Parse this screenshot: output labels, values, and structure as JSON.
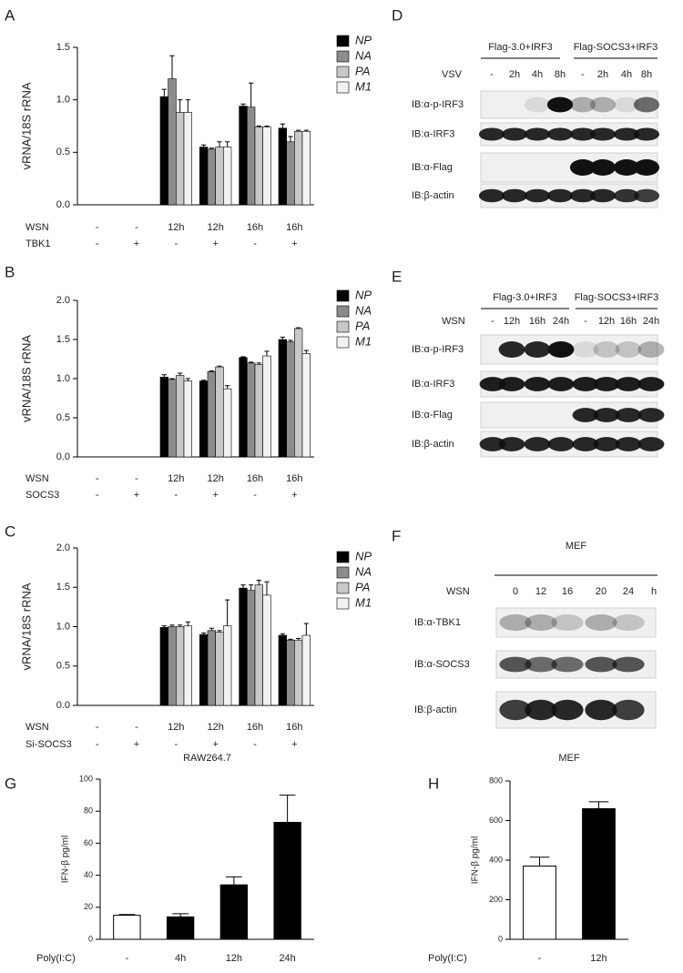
{
  "chart_data": [
    {
      "type": "grouped-bar",
      "panel": "A",
      "y_label": "vRNA/18S rRNA",
      "ylim": [
        0,
        1.5
      ],
      "yticks": [
        {
          "value": 0,
          "label": "0.0"
        },
        0.5,
        {
          "value": 1,
          "label": "1.0"
        },
        1.5
      ],
      "condition_rows": [
        {
          "name": "WSN",
          "labels": [
            "-",
            "-",
            "12h",
            "12h",
            "16h",
            "16h"
          ]
        },
        {
          "name": "TBK1",
          "labels": [
            "-",
            "+",
            "-",
            "+",
            "-",
            "+"
          ]
        }
      ],
      "series": [
        {
          "name": "NP",
          "color": "#000000",
          "values": [
            0,
            0,
            1.03,
            0.55,
            0.94,
            0.73
          ],
          "errors": [
            null,
            null,
            0.07,
            0.02,
            0.02,
            0.04
          ]
        },
        {
          "name": "NA",
          "color": "#8c8c8c",
          "values": [
            0,
            0,
            1.2,
            0.53,
            0.93,
            0.6
          ],
          "errors": [
            null,
            null,
            0.22,
            0.01,
            0.23,
            0.05
          ]
        },
        {
          "name": "PA",
          "color": "#c8c8c8",
          "values": [
            0,
            0,
            0.88,
            0.55,
            0.74,
            0.7
          ],
          "errors": [
            null,
            null,
            0.12,
            0.05,
            0.01,
            0.01
          ]
        },
        {
          "name": "M1",
          "color": "#f2f2f2",
          "values": [
            0,
            0,
            0.88,
            0.55,
            0.74,
            0.7
          ],
          "errors": [
            null,
            null,
            0.12,
            0.05,
            0.01,
            0.01
          ]
        }
      ]
    },
    {
      "type": "grouped-bar",
      "panel": "B",
      "y_label": "vRNA/18S rRNA",
      "ylim": [
        0,
        2
      ],
      "yticks": [
        {
          "value": 0,
          "label": "0.0"
        },
        0.5,
        {
          "value": 1,
          "label": "1.0"
        },
        1.5,
        {
          "value": 2,
          "label": "2.0"
        }
      ],
      "condition_rows": [
        {
          "name": "WSN",
          "labels": [
            "-",
            "-",
            "12h",
            "12h",
            "16h",
            "16h"
          ]
        },
        {
          "name": "SOCS3",
          "labels": [
            "-",
            "+",
            "-",
            "+",
            "-",
            "+"
          ]
        }
      ],
      "series": [
        {
          "name": "NP",
          "color": "#000000",
          "values": [
            0,
            0,
            1.02,
            0.97,
            1.27,
            1.5
          ],
          "errors": [
            null,
            null,
            0.03,
            0.01,
            0.01,
            0.03
          ]
        },
        {
          "name": "NA",
          "color": "#8c8c8c",
          "values": [
            0,
            0,
            0.99,
            1.09,
            1.2,
            1.47
          ],
          "errors": [
            null,
            null,
            0.01,
            0.01,
            0.01,
            0.02
          ]
        },
        {
          "name": "PA",
          "color": "#c8c8c8",
          "values": [
            0,
            0,
            1.04,
            1.15,
            1.18,
            1.64
          ],
          "errors": [
            null,
            null,
            0.03,
            0.01,
            0.02,
            0.01
          ]
        },
        {
          "name": "M1",
          "color": "#f2f2f2",
          "values": [
            0,
            0,
            0.97,
            0.87,
            1.29,
            1.32
          ],
          "errors": [
            null,
            null,
            0.03,
            0.04,
            0.06,
            0.04
          ]
        }
      ]
    },
    {
      "type": "grouped-bar",
      "panel": "C",
      "y_label": "vRNA/18S rRNA",
      "ylim": [
        0,
        2
      ],
      "yticks": [
        {
          "value": 0,
          "label": "0.0"
        },
        0.5,
        {
          "value": 1,
          "label": "1.0"
        },
        1.5,
        {
          "value": 2,
          "label": "2.0"
        }
      ],
      "condition_rows": [
        {
          "name": "WSN",
          "labels": [
            "-",
            "-",
            "12h",
            "12h",
            "16h",
            "16h"
          ]
        },
        {
          "name": "Si-SOCS3",
          "labels": [
            "-",
            "+",
            "-",
            "+",
            "-",
            "+"
          ]
        }
      ],
      "series": [
        {
          "name": "NP",
          "color": "#000000",
          "values": [
            0,
            0,
            0.99,
            0.9,
            1.49,
            0.89
          ],
          "errors": [
            null,
            null,
            0.02,
            0.02,
            0.04,
            0.02
          ]
        },
        {
          "name": "NA",
          "color": "#8c8c8c",
          "values": [
            0,
            0,
            1.0,
            0.95,
            1.46,
            0.83
          ],
          "errors": [
            null,
            null,
            0.02,
            0.03,
            0.07,
            0.01
          ]
        },
        {
          "name": "PA",
          "color": "#c8c8c8",
          "values": [
            0,
            0,
            1.0,
            0.93,
            1.53,
            0.83
          ],
          "errors": [
            null,
            null,
            0.02,
            0.02,
            0.06,
            0.02
          ]
        },
        {
          "name": "M1",
          "color": "#f2f2f2",
          "values": [
            0,
            0,
            1.01,
            1.01,
            1.4,
            0.89
          ],
          "errors": [
            null,
            null,
            0.05,
            0.33,
            0.17,
            0.15
          ]
        }
      ]
    },
    {
      "type": "bar",
      "panel": "G",
      "title": "RAW264.7",
      "y_label": "IFN-β pg/ml",
      "x_row_label": "Poly(I:C)",
      "categories": [
        "-",
        "4h",
        "12h",
        "24h"
      ],
      "values": [
        15,
        14,
        34,
        73
      ],
      "errors": [
        0.5,
        2,
        5,
        17
      ],
      "colors": [
        "#ffffff",
        "#000000",
        "#000000",
        "#000000"
      ],
      "ylim": [
        0,
        100
      ],
      "yticks": [
        0,
        20,
        40,
        60,
        80,
        100
      ]
    },
    {
      "type": "bar",
      "panel": "H",
      "title": "MEF",
      "y_label": "IFN-β pg/ml",
      "x_row_label": "Poly(I:C)",
      "categories": [
        "-",
        "12h"
      ],
      "values": [
        370,
        660
      ],
      "errors": [
        45,
        35
      ],
      "colors": [
        "#ffffff",
        "#000000"
      ],
      "ylim": [
        0,
        800
      ],
      "yticks": [
        0,
        200,
        400,
        600,
        800
      ]
    }
  ],
  "blots": [
    {
      "panel": "D",
      "groups": [
        "Flag-3.0+IRF3",
        "Flag-SOCS3+IRF3"
      ],
      "lane_name": "VSV",
      "lanes": [
        "-",
        "2h",
        "4h",
        "8h",
        "-",
        "2h",
        "4h",
        "8h"
      ],
      "rows": [
        "IB:α-p-IRF3",
        "IB:α-IRF3",
        "IB:α-Flag",
        "IB:β-actin"
      ]
    },
    {
      "panel": "E",
      "groups": [
        "Flag-3.0+IRF3",
        "Flag-SOCS3+IRF3"
      ],
      "lane_name": "WSN",
      "lanes": [
        "-",
        "12h",
        "16h",
        "24h",
        "-",
        "12h",
        "16h",
        "24h"
      ],
      "rows": [
        "IB:α-p-IRF3",
        "IB:α-IRF3",
        "IB:α-Flag",
        "IB:β-actin"
      ]
    },
    {
      "panel": "F",
      "groups": [
        "MEF"
      ],
      "lane_name": "WSN",
      "lanes": [
        "0",
        "12",
        "16",
        "20",
        "24",
        "h"
      ],
      "rows": [
        "IB:α-TBK1",
        "IB:α-SOCS3",
        "IB:β-actin"
      ]
    }
  ]
}
